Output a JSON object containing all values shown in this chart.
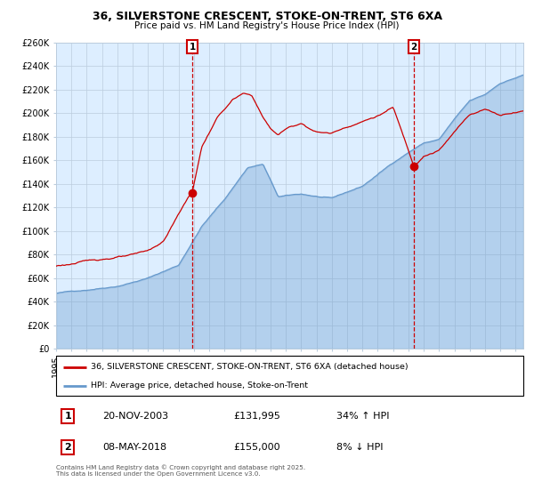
{
  "title": "36, SILVERSTONE CRESCENT, STOKE-ON-TRENT, ST6 6XA",
  "subtitle": "Price paid vs. HM Land Registry's House Price Index (HPI)",
  "legend_line1": "36, SILVERSTONE CRESCENT, STOKE-ON-TRENT, ST6 6XA (detached house)",
  "legend_line2": "HPI: Average price, detached house, Stoke-on-Trent",
  "transaction1_date": "20-NOV-2003",
  "transaction1_price": "£131,995",
  "transaction1_hpi": "34% ↑ HPI",
  "transaction2_date": "08-MAY-2018",
  "transaction2_price": "£155,000",
  "transaction2_hpi": "8% ↓ HPI",
  "footer": "Contains HM Land Registry data © Crown copyright and database right 2025.\nThis data is licensed under the Open Government Licence v3.0.",
  "hpi_color": "#6699cc",
  "price_color": "#cc0000",
  "bg_color": "#ddeeff",
  "grid_color": "#bbccdd",
  "marker_color": "#cc0000",
  "dashed_line_color": "#cc0000",
  "ylim": [
    0,
    260000
  ],
  "ytick_step": 20000,
  "marker1_year": 2003.89,
  "marker1_value": 131995,
  "marker2_year": 2018.36,
  "marker2_value": 155000
}
